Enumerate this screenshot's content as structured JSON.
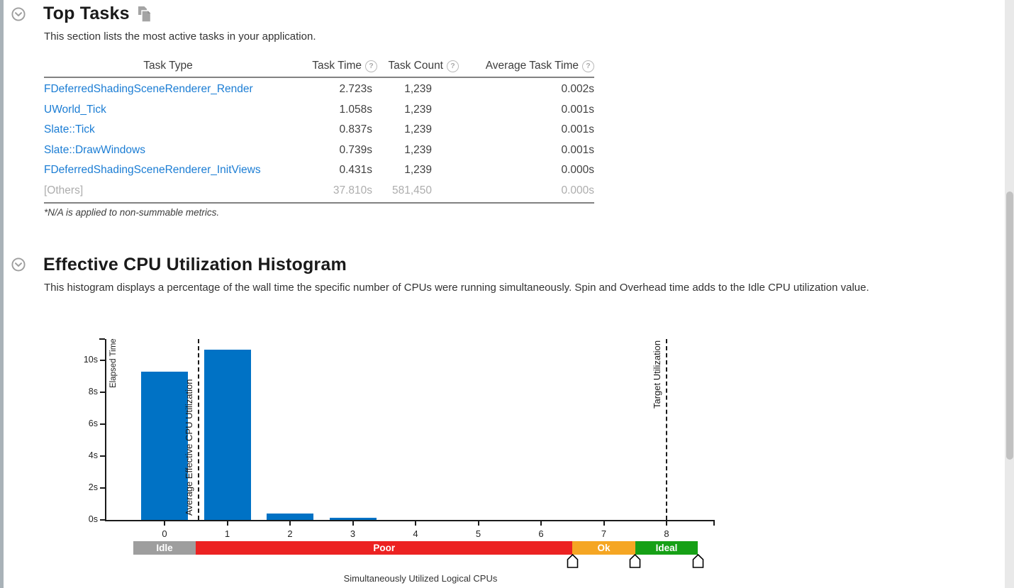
{
  "colors": {
    "bar_blue": "#0072C5",
    "link_blue": "#1B7DD4",
    "idle_gray": "#9E9E9E",
    "poor_red": "#EC2222",
    "ok_orange": "#F5A623",
    "ideal_green": "#16A016",
    "muted_text": "#ADADAD"
  },
  "top_tasks": {
    "title": "Top Tasks",
    "description": "This section lists the most active tasks in your application.",
    "table": {
      "headers": [
        {
          "label": "Task Type",
          "help": false
        },
        {
          "label": "Task Time",
          "help": true
        },
        {
          "label": "Task Count",
          "help": true
        },
        {
          "label": "Average Task Time",
          "help": true
        }
      ],
      "help_glyph": "?",
      "rows": [
        {
          "task_type": "FDeferredShadingSceneRenderer_Render",
          "task_time": "2.723s",
          "task_count": "1,239",
          "avg_task_time": "0.002s",
          "muted": false
        },
        {
          "task_type": "UWorld_Tick",
          "task_time": "1.058s",
          "task_count": "1,239",
          "avg_task_time": "0.001s",
          "muted": false
        },
        {
          "task_type": "Slate::Tick",
          "task_time": "0.837s",
          "task_count": "1,239",
          "avg_task_time": "0.001s",
          "muted": false
        },
        {
          "task_type": "Slate::DrawWindows",
          "task_time": "0.739s",
          "task_count": "1,239",
          "avg_task_time": "0.001s",
          "muted": false
        },
        {
          "task_type": "FDeferredShadingSceneRenderer_InitViews",
          "task_time": "0.431s",
          "task_count": "1,239",
          "avg_task_time": "0.000s",
          "muted": false
        },
        {
          "task_type": "[Others]",
          "task_time": "37.810s",
          "task_count": "581,450",
          "avg_task_time": "0.000s",
          "muted": true
        }
      ]
    },
    "footnote": "*N/A is applied to non-summable metrics."
  },
  "histogram_section": {
    "title": "Effective CPU Utilization Histogram",
    "description": "This histogram displays a percentage of the wall time the specific number of CPUs were running simultaneously. Spin and Overhead time adds to the Idle CPU utilization value."
  },
  "chart_data": {
    "type": "bar",
    "xlabel": "Simultaneously Utilized Logical CPUs",
    "ylabel": "Elapsed Time",
    "categories": [
      0,
      1,
      2,
      3,
      4,
      5,
      6,
      7,
      8
    ],
    "values": [
      9.3,
      10.65,
      0.4,
      0.12,
      0,
      0,
      0,
      0,
      0
    ],
    "y_ticks": [
      {
        "value": 0,
        "label": "0s"
      },
      {
        "value": 2,
        "label": "2s"
      },
      {
        "value": 4,
        "label": "4s"
      },
      {
        "value": 6,
        "label": "6s"
      },
      {
        "value": 8,
        "label": "8s"
      },
      {
        "value": 10,
        "label": "10s"
      }
    ],
    "ylim": [
      0,
      11.3
    ],
    "xlim": [
      -0.93,
      8.78
    ],
    "grid": false,
    "legend": "none",
    "bar_color": "#0072C5",
    "annotations": [
      {
        "label": "Average Effective CPU Utilization",
        "x": 0.54,
        "line": "dashed",
        "label_anchor": "bottom"
      },
      {
        "label": "Target Utilization",
        "x": 8.0,
        "line": "dashed",
        "label_anchor": "top"
      }
    ],
    "bands": [
      {
        "label": "Idle",
        "from": -0.5,
        "to": 0.5,
        "color": "#9E9E9E"
      },
      {
        "label": "Poor",
        "from": 0.5,
        "to": 6.5,
        "color": "#EC2222"
      },
      {
        "label": "Ok",
        "from": 6.5,
        "to": 7.5,
        "color": "#F5A623"
      },
      {
        "label": "Ideal",
        "from": 7.5,
        "to": 8.5,
        "color": "#16A016"
      }
    ],
    "slider_positions": [
      6.5,
      7.5,
      8.5
    ]
  }
}
